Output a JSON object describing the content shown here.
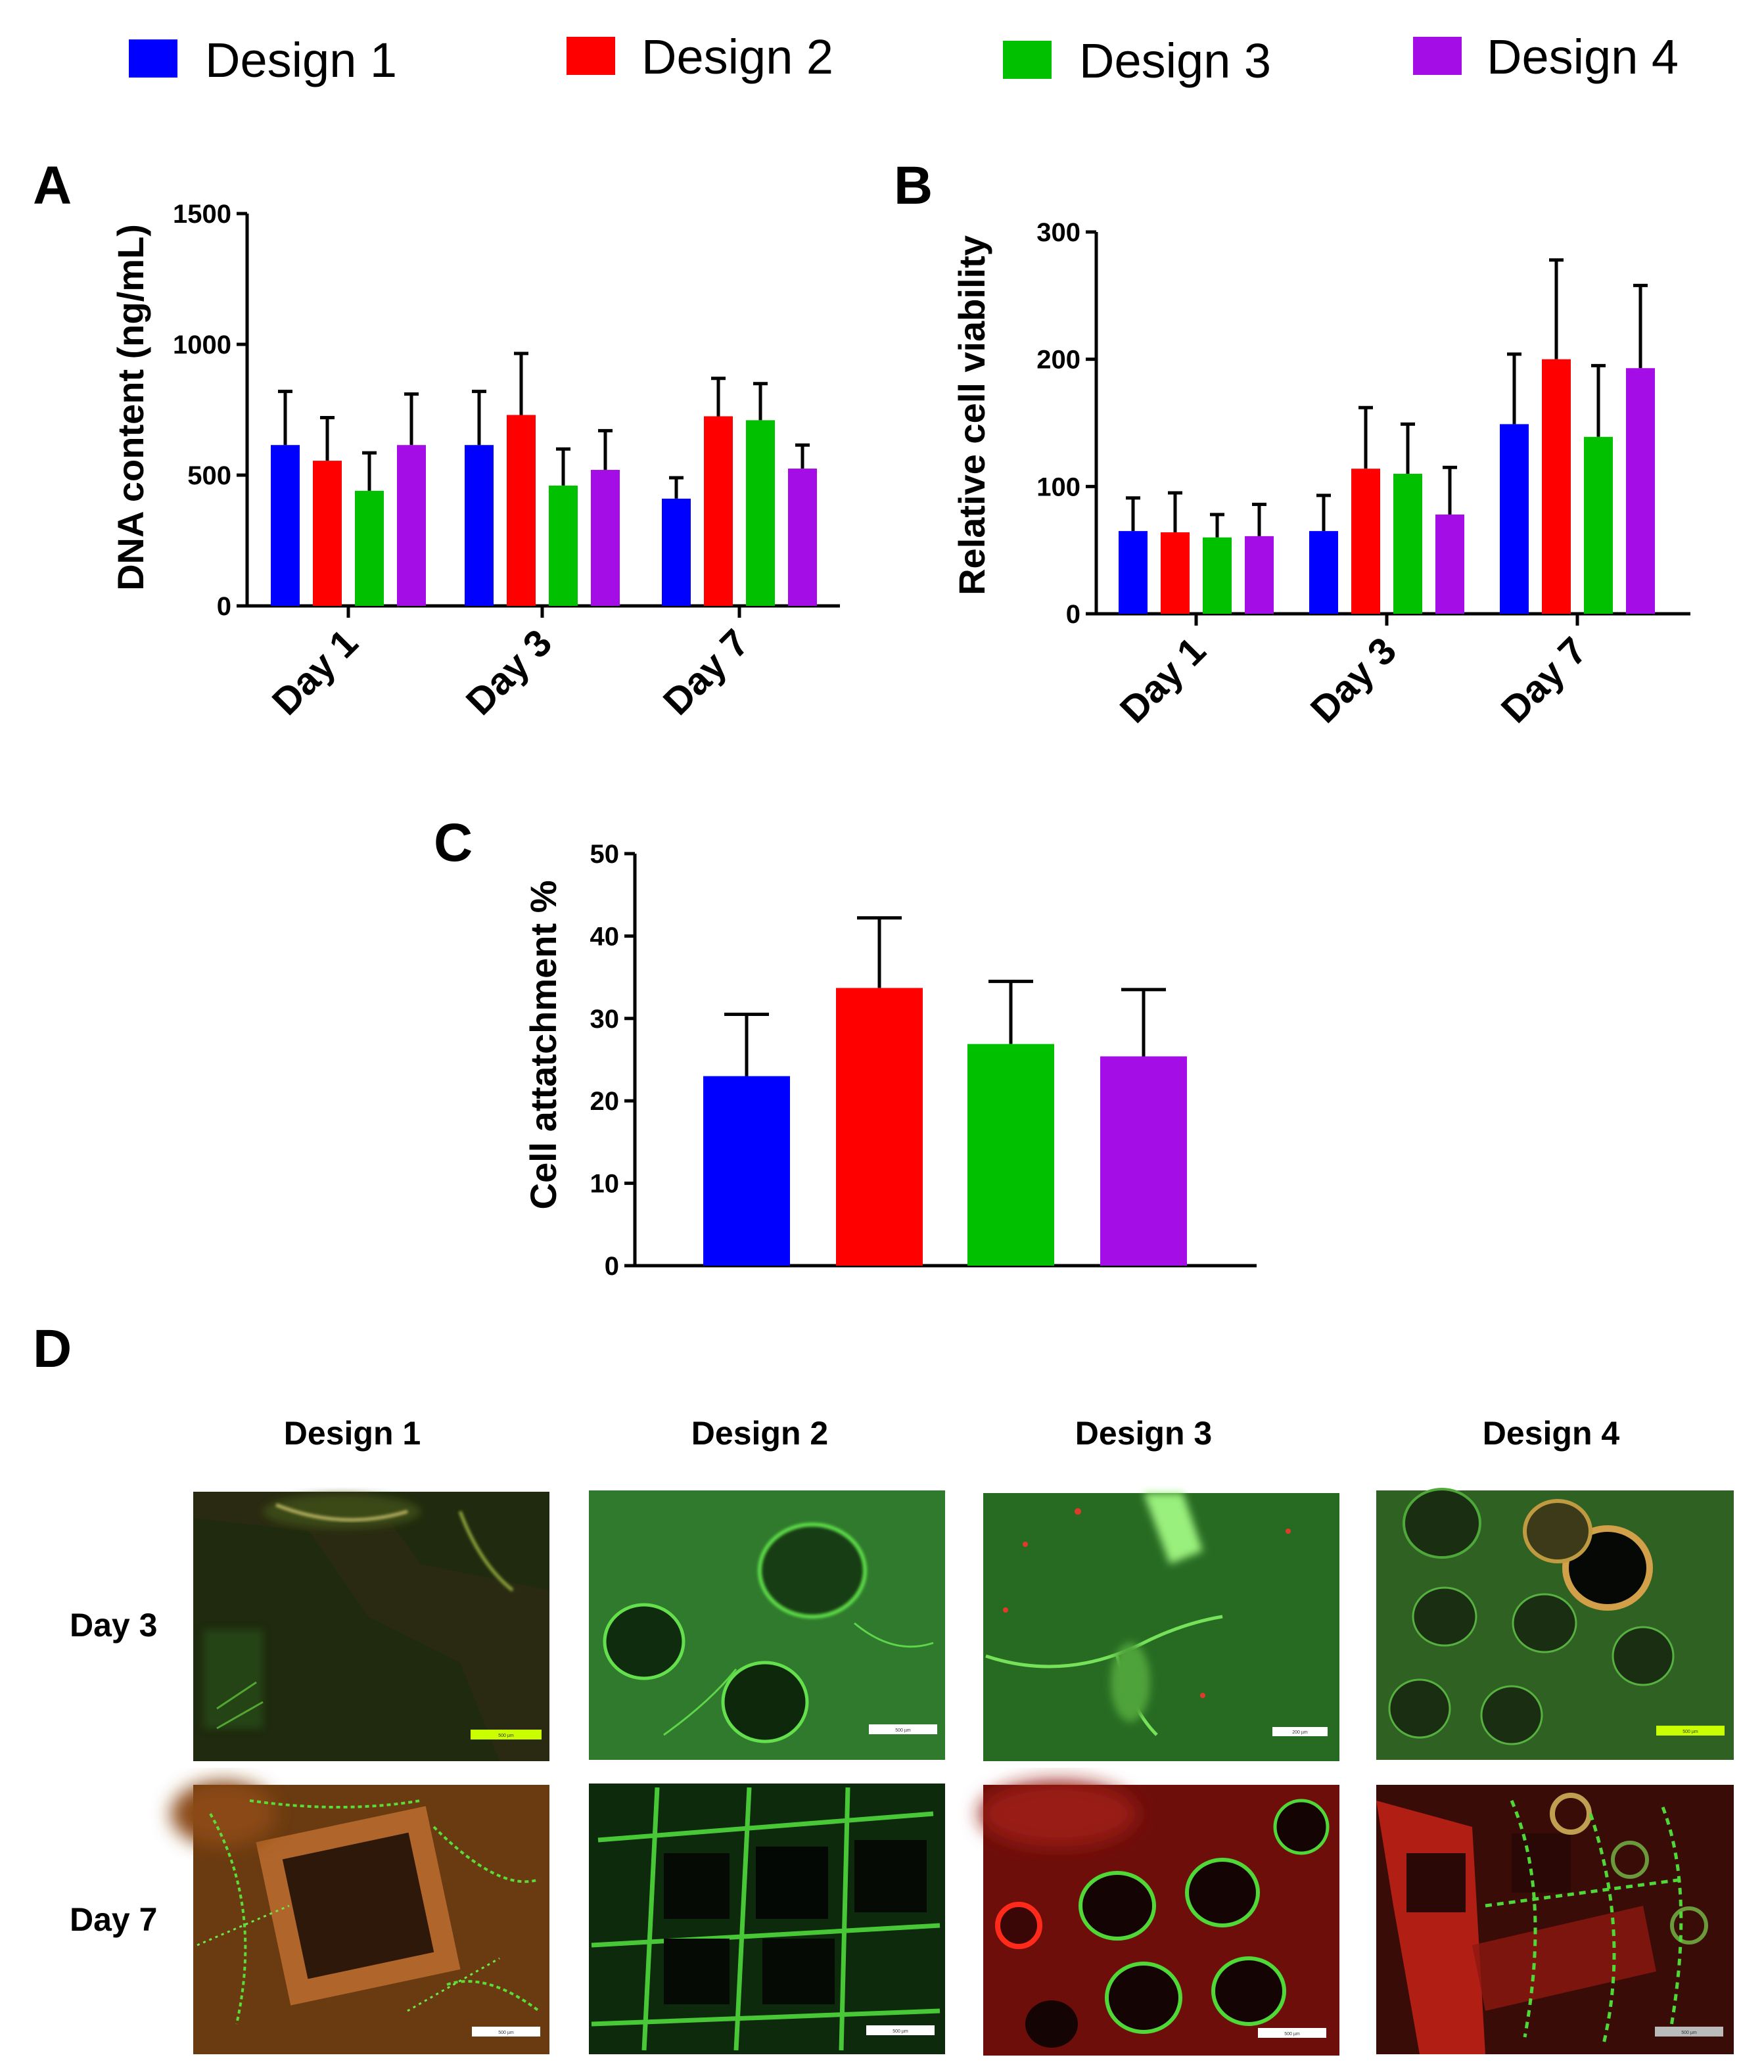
{
  "colors": {
    "design1": "#0000FF",
    "design2": "#FF0000",
    "design3": "#00C000",
    "design4": "#A50DE6"
  },
  "legend": [
    "Design 1",
    "Design 2",
    "Design 3",
    "Design 4"
  ],
  "chart_data": [
    {
      "panel": "A",
      "type": "bar",
      "ylabel": "DNA content (ng/mL)",
      "ylim": [
        0,
        1500
      ],
      "yticks": [
        0,
        500,
        1000,
        1500
      ],
      "categories": [
        "Day 1",
        "Day 3",
        "Day 7"
      ],
      "series": [
        {
          "name": "Design 1",
          "values": [
            615,
            615,
            410
          ],
          "errors": [
            205,
            205,
            80
          ]
        },
        {
          "name": "Design 2",
          "values": [
            555,
            730,
            725
          ],
          "errors": [
            165,
            235,
            145
          ]
        },
        {
          "name": "Design 3",
          "values": [
            440,
            460,
            710
          ],
          "errors": [
            145,
            140,
            140
          ]
        },
        {
          "name": "Design 4",
          "values": [
            615,
            520,
            525
          ],
          "errors": [
            195,
            150,
            90
          ]
        }
      ],
      "grid": false,
      "legend": "top"
    },
    {
      "panel": "B",
      "type": "bar",
      "ylabel": "Relative cell viability",
      "ylim": [
        0,
        300
      ],
      "yticks": [
        0,
        100,
        200,
        300
      ],
      "categories": [
        "Day 1",
        "Day 3",
        "Day 7"
      ],
      "series": [
        {
          "name": "Design 1",
          "values": [
            65,
            65,
            149
          ],
          "errors": [
            26,
            28,
            55
          ]
        },
        {
          "name": "Design 2",
          "values": [
            64,
            114,
            200
          ],
          "errors": [
            31,
            48,
            78
          ]
        },
        {
          "name": "Design 3",
          "values": [
            60,
            110,
            139
          ],
          "errors": [
            18,
            39,
            56
          ]
        },
        {
          "name": "Design 4",
          "values": [
            61,
            78,
            193
          ],
          "errors": [
            25,
            37,
            65
          ]
        }
      ],
      "grid": false,
      "legend": "top"
    },
    {
      "panel": "C",
      "type": "bar",
      "ylabel": "Cell attatchment %",
      "ylim": [
        0,
        50
      ],
      "yticks": [
        0,
        10,
        20,
        30,
        40,
        50
      ],
      "categories": [
        "Design 1",
        "Design 2",
        "Design 3",
        "Design 4"
      ],
      "values": [
        23,
        33.7,
        26.9,
        25.4
      ],
      "errors": [
        7.5,
        8.5,
        7.6,
        8.1
      ],
      "grid": false
    }
  ],
  "panel_d": {
    "letter": "D",
    "columns": [
      "Design 1",
      "Design 2",
      "Design 3",
      "Design 4"
    ],
    "rows": [
      "Day 3",
      "Day 7"
    ],
    "scalebars": [
      [
        "500 µm",
        "500 µm",
        "200 µm",
        "500 µm"
      ],
      [
        "500 µm",
        "500 µm",
        "500 µm",
        "500 µm"
      ]
    ]
  }
}
